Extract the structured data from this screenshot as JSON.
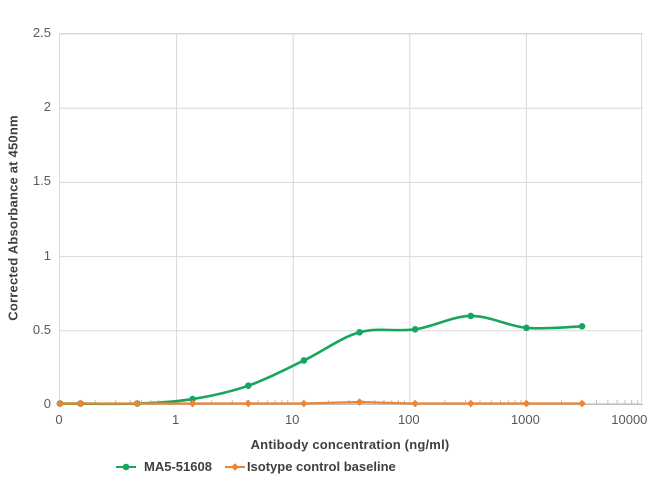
{
  "figure": {
    "background_color": "#ffffff",
    "plot_border_color": "#d9d9d9",
    "gridline_color": "#d9d9d9",
    "axis_line_color": "#bfbfbf",
    "minor_tick_color": "#bfbfbf",
    "tick_label_color": "#595959",
    "title_color": "#404040"
  },
  "chart_data": {
    "type": "line",
    "title": "",
    "xlabel": "Antibody concentration (ng/ml)",
    "ylabel": "Corrected Absorbance at 450nm",
    "x_scale": "log",
    "xlim": [
      0.1,
      10000
    ],
    "ylim": [
      0,
      2.5
    ],
    "grid": true,
    "minor_log_ticks_x": true,
    "legend_position": "bottom",
    "x_ticks": [
      {
        "value": 0.1,
        "label": "0"
      },
      {
        "value": 1,
        "label": "1"
      },
      {
        "value": 10,
        "label": "10"
      },
      {
        "value": 100,
        "label": "100"
      },
      {
        "value": 1000,
        "label": "1000"
      },
      {
        "value": 10000,
        "label": "10000"
      }
    ],
    "y_ticks": [
      {
        "value": 0,
        "label": "0"
      },
      {
        "value": 0.5,
        "label": "0.5"
      },
      {
        "value": 1,
        "label": "1"
      },
      {
        "value": 1.5,
        "label": "1.5"
      },
      {
        "value": 2,
        "label": "2"
      },
      {
        "value": 2.5,
        "label": "2.5"
      }
    ],
    "x": [
      0,
      0.15,
      0.46,
      1.37,
      4.12,
      12.35,
      37.04,
      111.1,
      333.3,
      1000,
      3000
    ],
    "x_note": "0 ng/ml point is plotted at the axis minimum (0.1, labeled 0)",
    "series": [
      {
        "name": "MA5-51608",
        "color": "#16a75c",
        "marker": "circle",
        "smooth": true,
        "line_width": 2.6,
        "values": [
          0.01,
          0.01,
          0.01,
          0.04,
          0.13,
          0.3,
          0.49,
          0.51,
          0.6,
          0.52,
          0.53
        ]
      },
      {
        "name": "Isotype control baseline",
        "color": "#ee8434",
        "marker": "diamond",
        "smooth": false,
        "line_width": 2.2,
        "values": [
          0.01,
          0.01,
          0.01,
          0.01,
          0.01,
          0.01,
          0.02,
          0.01,
          0.01,
          0.01,
          0.01
        ]
      }
    ]
  }
}
